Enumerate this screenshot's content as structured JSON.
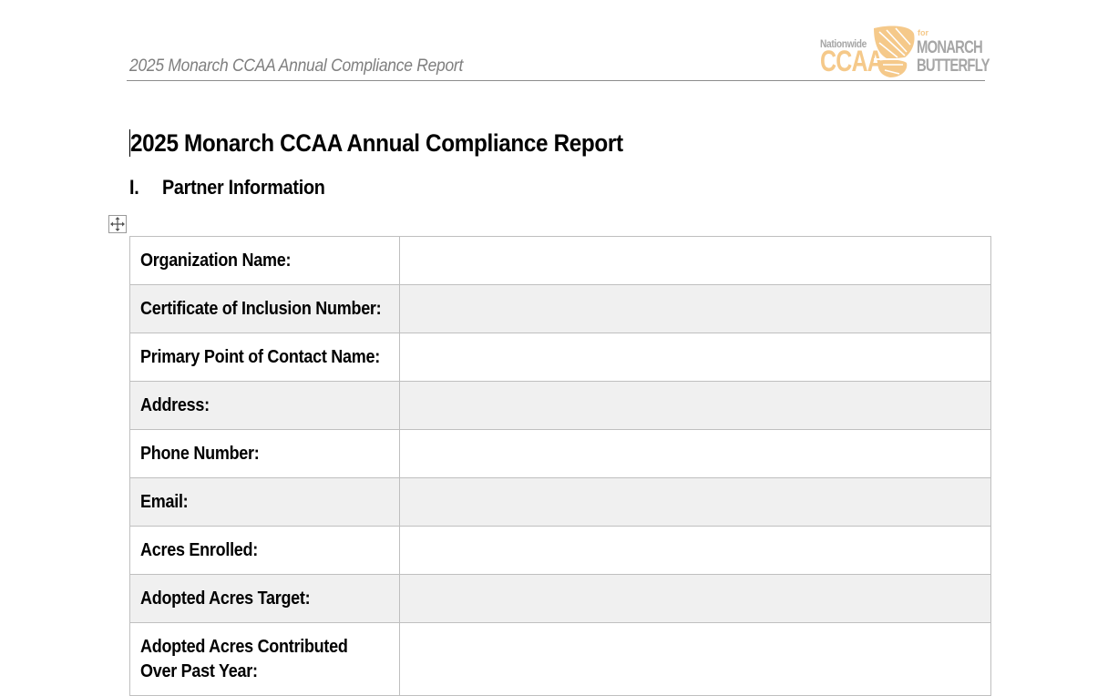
{
  "header": {
    "title": "2025 Monarch CCAA Annual Compliance Report",
    "logo": {
      "nationwide": "Nationwide",
      "ccaa": "CCAA",
      "for": "for",
      "monarch": "MONARCH",
      "butterfly": "BUTTERFLY",
      "accent_color": "#f5c98a",
      "gray_color": "#a6a6a6"
    }
  },
  "document": {
    "title": "2025 Monarch CCAA Annual Compliance Report",
    "section": {
      "number": "I.",
      "title": "Partner Information"
    }
  },
  "table": {
    "rows": [
      {
        "label": "Organization Name:",
        "value": ""
      },
      {
        "label": "Certificate of Inclusion Number:",
        "value": ""
      },
      {
        "label": "Primary Point of Contact Name:",
        "value": ""
      },
      {
        "label": "Address:",
        "value": ""
      },
      {
        "label": "Phone Number:",
        "value": ""
      },
      {
        "label": "Email:",
        "value": ""
      },
      {
        "label": "Acres Enrolled:",
        "value": ""
      },
      {
        "label": "Adopted Acres Target:",
        "value": ""
      },
      {
        "label": "Adopted Acres Contributed Over Past Year:",
        "value": ""
      }
    ]
  },
  "icons": {
    "table_handle": "move-arrows-icon"
  }
}
